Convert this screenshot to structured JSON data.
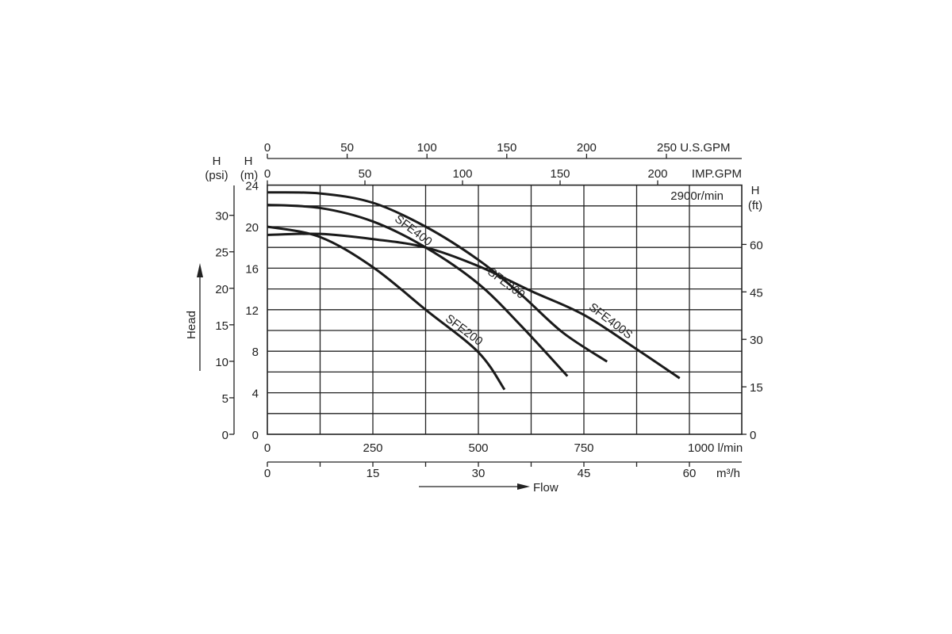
{
  "chart_data": {
    "type": "line",
    "title": "",
    "speed_label": "2900r/min",
    "xlabel": "Flow",
    "ylabel": "Head",
    "x_unit": "l/min",
    "xlim": [
      0,
      1125
    ],
    "ylim": [
      0,
      24
    ],
    "grid": true,
    "axes": {
      "bottom_lmin": {
        "unit": "l/min",
        "ticks": [
          0,
          250,
          500,
          750,
          1000
        ],
        "labels": [
          "0",
          "250",
          "500",
          "750",
          "1000 l/min"
        ]
      },
      "bottom_m3h": {
        "unit": "m³/h",
        "ticks": [
          0,
          15,
          30,
          45,
          60
        ],
        "labels": [
          "0",
          "15",
          "30",
          "45",
          "60"
        ]
      },
      "top_usgpm": {
        "unit": "U.S.GPM",
        "ticks": [
          0,
          50,
          100,
          150,
          200,
          250
        ],
        "labels": [
          "0",
          "50",
          "100",
          "150",
          "200",
          "250 U.S.GPM"
        ]
      },
      "top_impgpm": {
        "unit": "IMP.GPM",
        "ticks": [
          0,
          50,
          100,
          150,
          200
        ],
        "labels": [
          "0",
          "50",
          "100",
          "150",
          "200"
        ],
        "unit_label": "IMP.GPM"
      },
      "left_m": {
        "title": "H",
        "unit": "(m)",
        "ticks": [
          0,
          4,
          8,
          12,
          16,
          20,
          24
        ]
      },
      "left_psi": {
        "title": "H",
        "unit": "(psi)",
        "ticks": [
          0,
          5,
          10,
          15,
          20,
          25,
          30
        ]
      },
      "right_ft": {
        "title": "H",
        "unit": "(ft)",
        "ticks": [
          0,
          15,
          30,
          45,
          60
        ]
      },
      "m3h_unit": "m³/h"
    },
    "series": [
      {
        "name": "SFE400",
        "x": [
          0,
          125,
          250,
          375,
          500,
          600,
          700,
          805
        ],
        "y": [
          23.3,
          23.2,
          22.3,
          20.0,
          16.8,
          13.5,
          9.8,
          7.0
        ]
      },
      {
        "name": "SFE400S",
        "x": [
          0,
          125,
          250,
          375,
          500,
          625,
          750,
          875,
          977
        ],
        "y": [
          19.2,
          19.3,
          18.8,
          18.0,
          16.2,
          13.8,
          11.5,
          8.2,
          5.4
        ]
      },
      {
        "name": "SFE300",
        "x": [
          0,
          125,
          250,
          375,
          500,
          600,
          711
        ],
        "y": [
          22.1,
          21.8,
          20.5,
          18.0,
          14.5,
          10.5,
          5.6
        ]
      },
      {
        "name": "SFE200",
        "x": [
          0,
          125,
          250,
          375,
          500,
          562
        ],
        "y": [
          20.0,
          19.0,
          16.1,
          12.0,
          7.9,
          4.3
        ]
      }
    ],
    "labels_pos": {
      "SFE400": [
        300,
        20.6
      ],
      "SFE400S": [
        760,
        12.1
      ],
      "SFE300": [
        520,
        15.5
      ],
      "SFE200": [
        420,
        11.0
      ]
    }
  }
}
